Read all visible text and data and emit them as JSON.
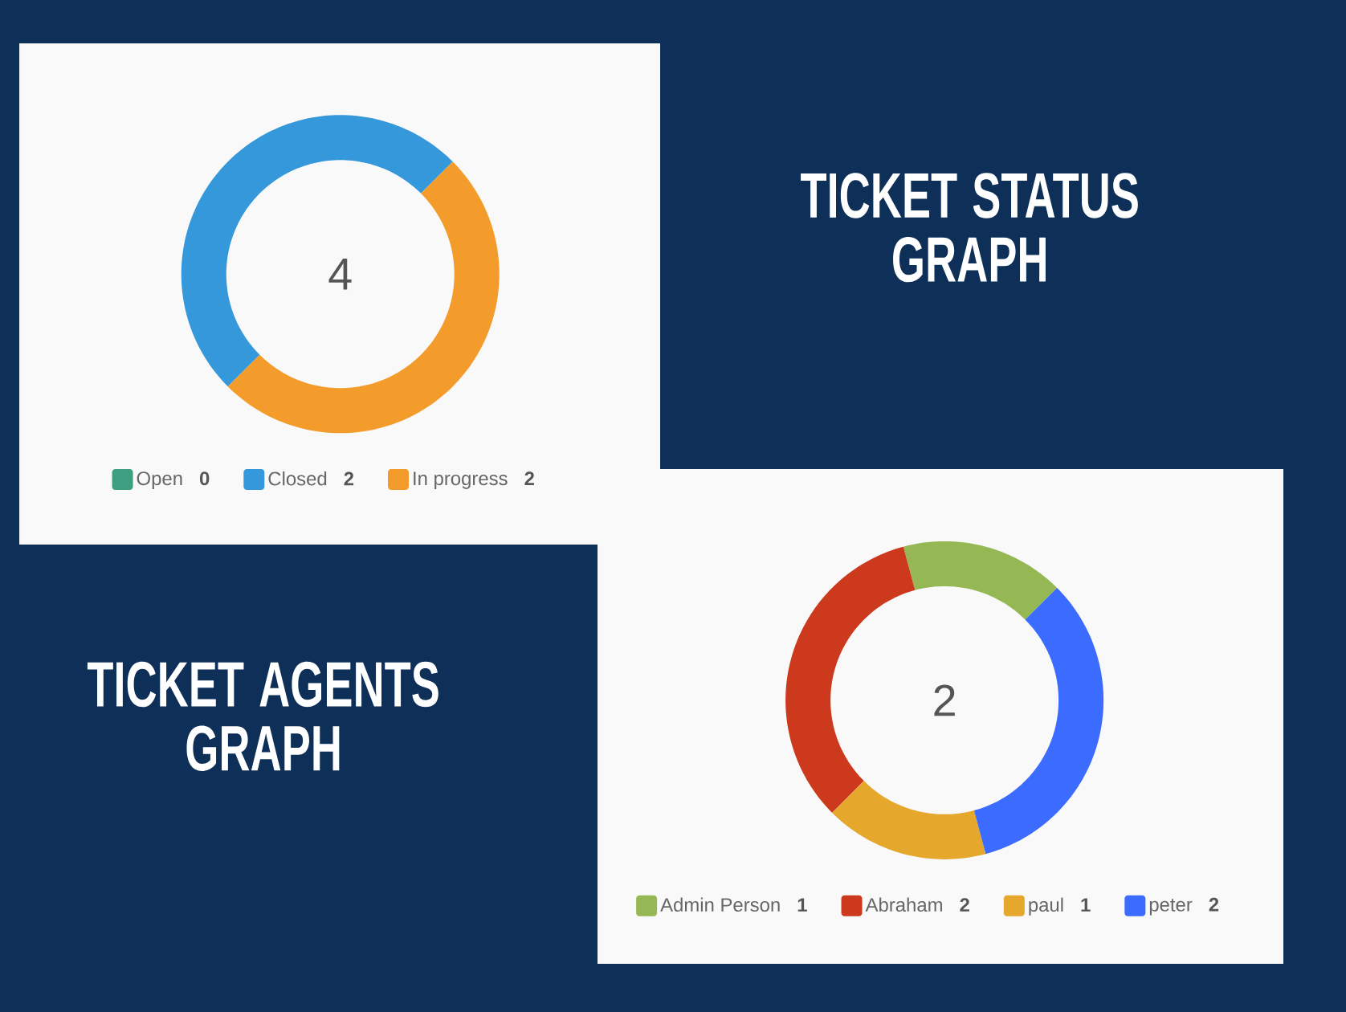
{
  "chart_data": [
    {
      "type": "donut",
      "title": "TICKET STATUS GRAPH",
      "categories": [
        "Open",
        "Closed",
        "In progress"
      ],
      "values": [
        0,
        2,
        2
      ],
      "value_labels": [
        "0",
        "2",
        "2"
      ],
      "colors": [
        "#3d9e80",
        "#3498db",
        "#f39c2b"
      ],
      "legend": "bottom",
      "annotations": [
        "4"
      ]
    },
    {
      "type": "donut",
      "title": "TICKET AGENTS GRAPH",
      "categories": [
        "Admin Person",
        "Abraham",
        "paul",
        "peter"
      ],
      "values": [
        1,
        2,
        1,
        2
      ],
      "value_labels": [
        "1",
        "2",
        "1",
        "2"
      ],
      "colors": [
        "#96b854",
        "#cc391c",
        "#e5a72c",
        "#3b6bff"
      ],
      "legend": "bottom",
      "annotations": [
        "2"
      ]
    }
  ]
}
